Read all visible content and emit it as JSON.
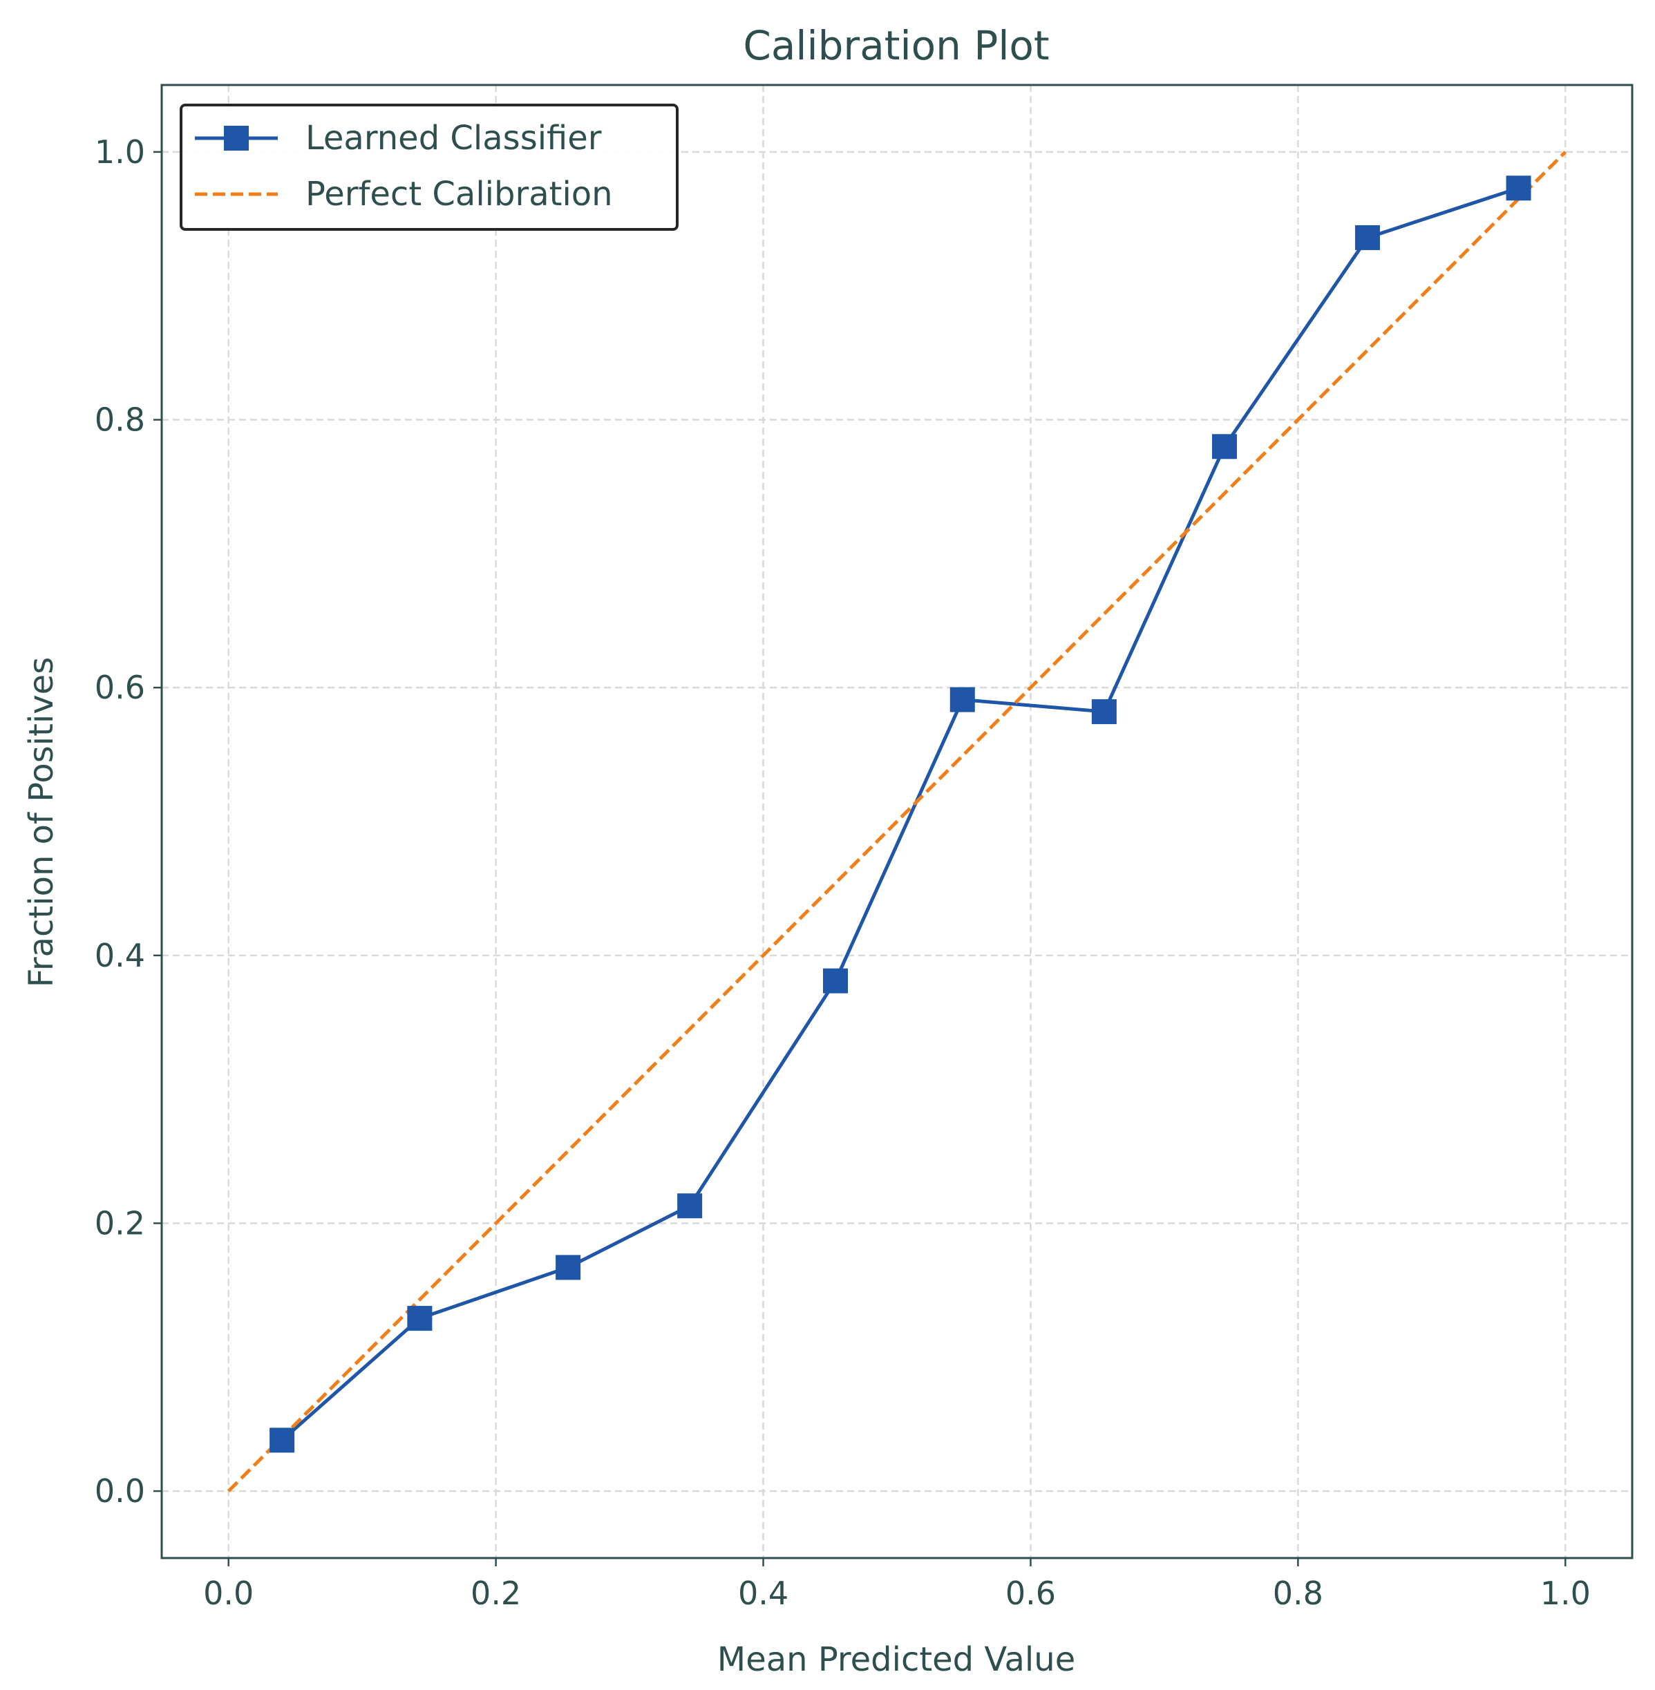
{
  "chart_data": {
    "type": "line",
    "title": "Calibration Plot",
    "xlabel": "Mean Predicted Value",
    "ylabel": "Fraction of Positives",
    "xlim": [
      -0.05,
      1.05
    ],
    "ylim": [
      -0.05,
      1.05
    ],
    "xticks": [
      0.0,
      0.2,
      0.4,
      0.6,
      0.8,
      1.0
    ],
    "yticks": [
      0.0,
      0.2,
      0.4,
      0.6,
      0.8,
      1.0
    ],
    "xtick_labels": [
      "0.0",
      "0.2",
      "0.4",
      "0.6",
      "0.8",
      "1.0"
    ],
    "ytick_labels": [
      "0.0",
      "0.2",
      "0.4",
      "0.6",
      "0.8",
      "1.0"
    ],
    "grid": true,
    "legend_position": "top-left",
    "series": [
      {
        "name": "Learned Classifier",
        "color": "#1f56a8",
        "marker": "square",
        "line_style": "solid",
        "x": [
          0.04,
          0.143,
          0.254,
          0.345,
          0.454,
          0.549,
          0.655,
          0.745,
          0.852,
          0.965
        ],
        "y": [
          0.038,
          0.129,
          0.167,
          0.213,
          0.381,
          0.591,
          0.582,
          0.78,
          0.936,
          0.973
        ]
      },
      {
        "name": "Perfect Calibration",
        "color": "#f07f1a",
        "marker": "none",
        "line_style": "dashed",
        "x": [
          0.0,
          1.0
        ],
        "y": [
          0.0,
          1.0
        ]
      }
    ]
  },
  "colors": {
    "text": "#2f4f4f",
    "axes_frame": "#2f4f4f",
    "grid": "#d9d9d9",
    "legend_frame": "#262626"
  }
}
